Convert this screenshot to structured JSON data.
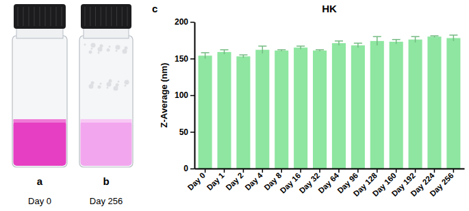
{
  "figure": {
    "panels": [
      {
        "label": "a",
        "caption": "Day 0"
      },
      {
        "label": "b",
        "caption": "Day 256"
      }
    ],
    "chart_label": "c"
  },
  "chart_data": {
    "type": "bar",
    "title": "HK",
    "y_label": "Z-Average (nm)",
    "categories": [
      "Day 0",
      "Day 1",
      "Day 2",
      "Day 4",
      "Day 8",
      "Day 16",
      "Day 32",
      "Day 64",
      "Day 96",
      "Day 128",
      "Day 160",
      "Day 192",
      "Day 224",
      "Day 256"
    ],
    "values": [
      154,
      159,
      153,
      162,
      161,
      165,
      161,
      171,
      168,
      174,
      173,
      176,
      180,
      178
    ],
    "errors": [
      4,
      3,
      2,
      5,
      1,
      2,
      1,
      3,
      3,
      6,
      3,
      4,
      1,
      4
    ],
    "color": "#8ee6a0",
    "ylim": [
      0,
      200
    ],
    "yticks": [
      0,
      50,
      100,
      150,
      200
    ],
    "grid": false
  }
}
